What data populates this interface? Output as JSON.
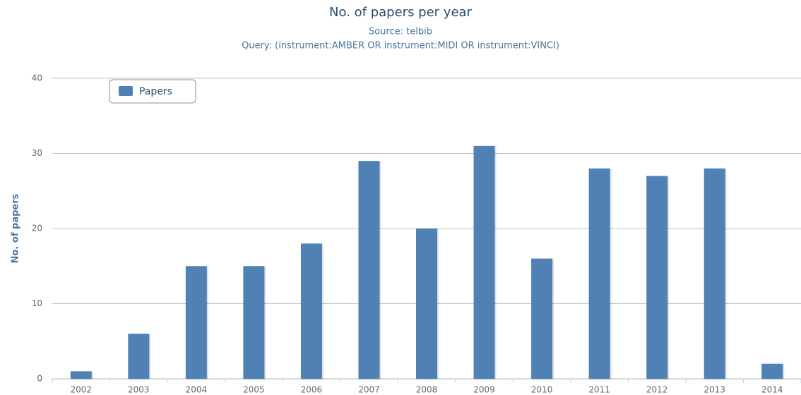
{
  "chart_data": {
    "type": "bar",
    "title": "No. of papers per year",
    "subtitle": [
      "Source: telbib",
      "Query: (instrument:AMBER OR instrument:MIDI OR instrument:VINCI)"
    ],
    "y_label": "No. of papers",
    "categories": [
      "2002",
      "2003",
      "2004",
      "2005",
      "2006",
      "2007",
      "2008",
      "2009",
      "2010",
      "2011",
      "2012",
      "2013",
      "2014"
    ],
    "series": [
      {
        "name": "Papers",
        "color": "#4f81b5",
        "values": [
          1,
          6,
          15,
          15,
          18,
          29,
          20,
          31,
          16,
          28,
          27,
          28,
          2
        ]
      }
    ],
    "ylim": [
      0,
      40
    ],
    "yticks": [
      0,
      10,
      20,
      30,
      40
    ],
    "grid": true,
    "legend": "top-left"
  }
}
